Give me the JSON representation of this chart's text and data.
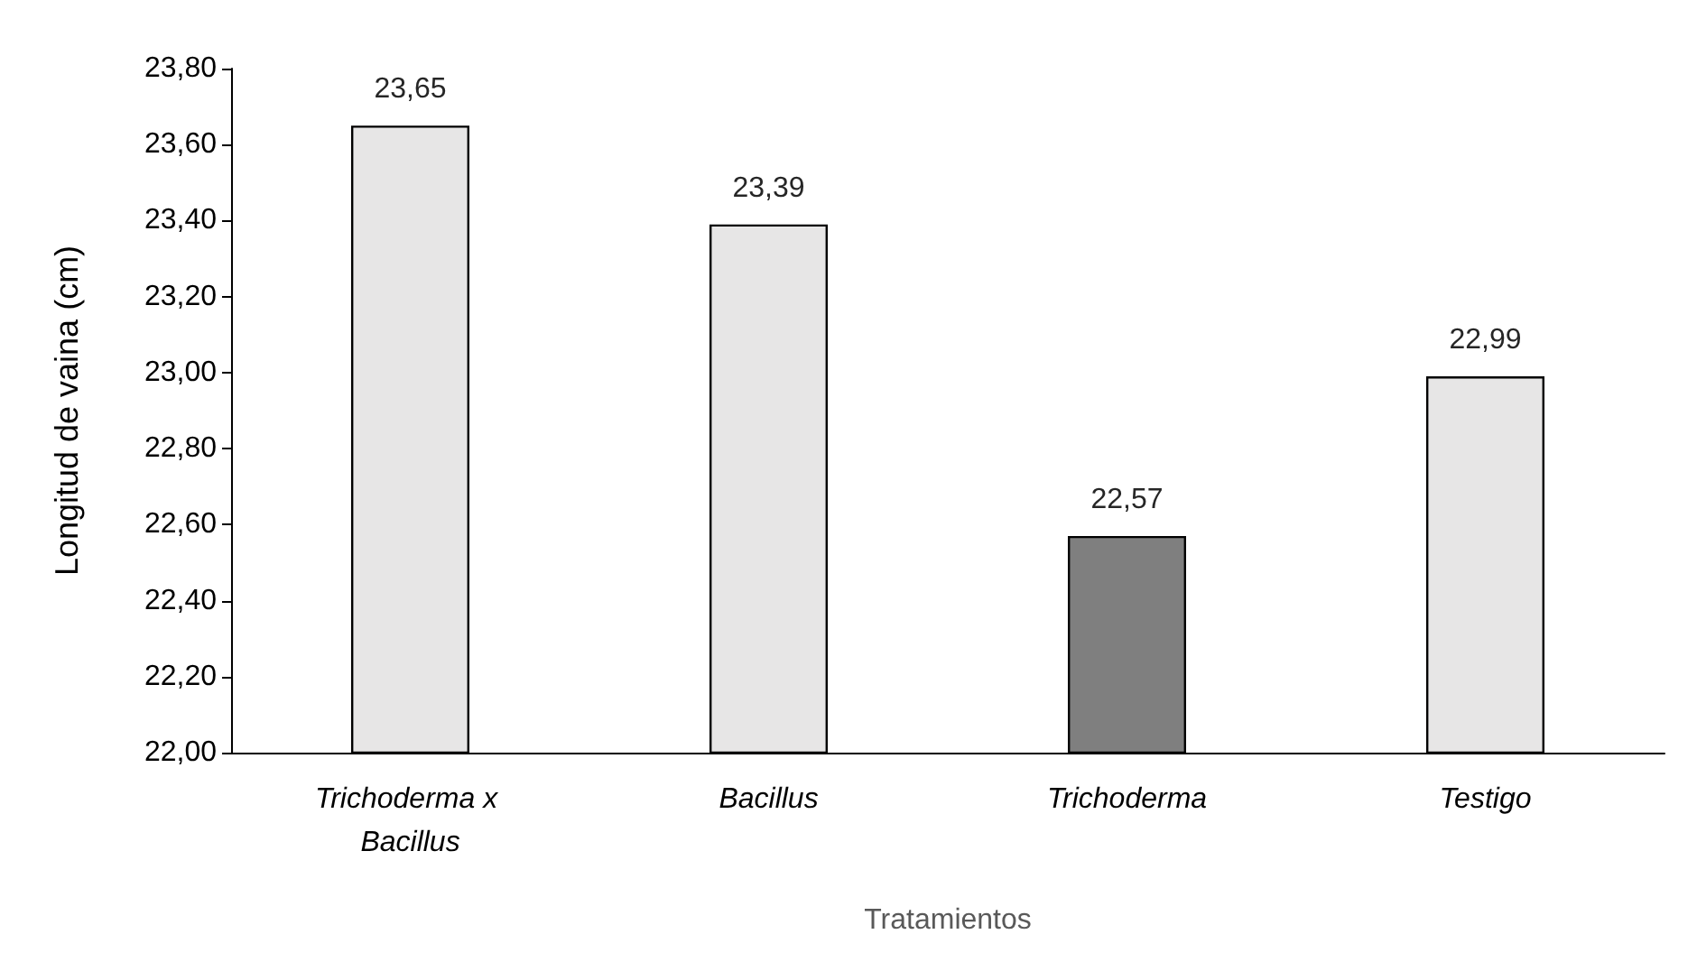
{
  "chart_data": {
    "type": "bar",
    "categories": [
      "Trichoderma x Bacillus",
      "Bacillus",
      "Trichoderma",
      "Testigo"
    ],
    "values": [
      23.65,
      23.39,
      22.57,
      22.99
    ],
    "colors": [
      "#e7e6e6",
      "#e7e6e6",
      "#7f7f7f",
      "#e7e6e6"
    ],
    "value_labels": [
      "23,65",
      "23,39",
      "22,57",
      "22,99"
    ],
    "xlabel": "Tratamientos",
    "ylabel": "Longitud de vaina (cm)",
    "ylim": [
      22,
      23.8
    ],
    "yticks": [
      {
        "value": 22,
        "label": "22,00"
      },
      {
        "value": 22.2,
        "label": "22,20"
      },
      {
        "value": 22.4,
        "label": "22,40"
      },
      {
        "value": 22.6,
        "label": "22,60"
      },
      {
        "value": 22.8,
        "label": "22,80"
      },
      {
        "value": 23,
        "label": "23,00"
      },
      {
        "value": 23.2,
        "label": "23,20"
      },
      {
        "value": 23.4,
        "label": "23,40"
      },
      {
        "value": 23.6,
        "label": "23,60"
      },
      {
        "value": 23.8,
        "label": "23,80"
      }
    ],
    "grid": false
  }
}
